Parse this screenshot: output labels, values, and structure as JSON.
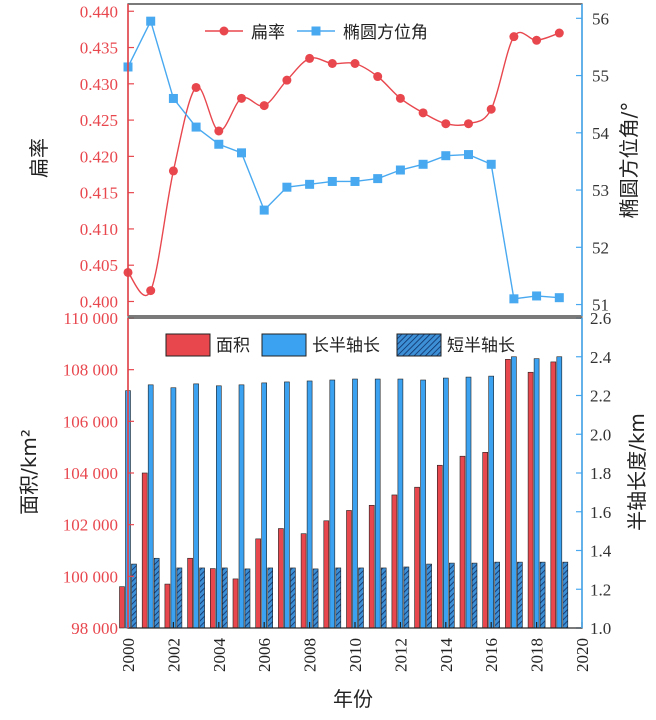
{
  "colors": {
    "red": "#e8474e",
    "blue": "#3ba2f2",
    "blue_line": "#49a9f0",
    "hatch_bg": "#3d8fd6",
    "hatch_line": "#0d2f66",
    "axis": "#222222"
  },
  "chart_data": [
    {
      "type": "line",
      "title": "",
      "xlabel": "",
      "xlim": [
        2000,
        2020
      ],
      "x": [
        2000,
        2001,
        2002,
        2003,
        2004,
        2005,
        2006,
        2007,
        2008,
        2009,
        2010,
        2011,
        2012,
        2013,
        2014,
        2015,
        2016,
        2017,
        2018,
        2019
      ],
      "left_axis": {
        "label": "扁率",
        "ylim": [
          0.398,
          0.441
        ],
        "ticks": [
          "0.400",
          "0.405",
          "0.410",
          "0.415",
          "0.420",
          "0.425",
          "0.430",
          "0.435",
          "0.440"
        ],
        "tick_values": [
          0.4,
          0.405,
          0.41,
          0.415,
          0.42,
          0.425,
          0.43,
          0.435,
          0.44
        ]
      },
      "right_axis": {
        "label": "椭圆方位角/°",
        "ylim": [
          50.8,
          56.25
        ],
        "ticks": [
          "51",
          "52",
          "53",
          "54",
          "55",
          "56"
        ],
        "tick_values": [
          51,
          52,
          53,
          54,
          55,
          56
        ]
      },
      "series": [
        {
          "name": "扁率",
          "axis": "left",
          "marker": "circle",
          "values": [
            0.404,
            0.4015,
            0.418,
            0.4295,
            0.4235,
            0.428,
            0.427,
            0.4305,
            0.4335,
            0.4328,
            0.4328,
            0.431,
            0.428,
            0.426,
            0.4245,
            0.4245,
            0.4265,
            0.4365,
            0.436,
            0.437
          ]
        },
        {
          "name": "椭圆方位角",
          "axis": "right",
          "marker": "square",
          "values": [
            55.15,
            55.95,
            54.6,
            54.1,
            53.8,
            53.65,
            52.65,
            53.05,
            53.1,
            53.15,
            53.15,
            53.2,
            53.35,
            53.45,
            53.6,
            53.62,
            53.45,
            51.1,
            51.15,
            51.12
          ]
        }
      ],
      "legend": {
        "position": "top-center",
        "entries": [
          "扁率",
          "椭圆方位角"
        ]
      }
    },
    {
      "type": "bar",
      "title": "",
      "xlabel": "年份",
      "xlim": [
        2000,
        2020
      ],
      "x_ticks": [
        "2000",
        "2002",
        "2004",
        "2006",
        "2008",
        "2010",
        "2012",
        "2014",
        "2016",
        "2018",
        "2020"
      ],
      "x": [
        2000,
        2001,
        2002,
        2003,
        2004,
        2005,
        2006,
        2007,
        2008,
        2009,
        2010,
        2011,
        2012,
        2013,
        2014,
        2015,
        2016,
        2017,
        2018,
        2019
      ],
      "left_axis": {
        "label": "面积/km²",
        "ylim": [
          98000,
          110000
        ],
        "ticks": [
          "98 000",
          "100 000",
          "102 000",
          "104 000",
          "106 000",
          "108 000",
          "110 000"
        ],
        "tick_values": [
          98000,
          100000,
          102000,
          104000,
          106000,
          108000,
          110000
        ]
      },
      "right_axis": {
        "label": "半轴长度/km",
        "ylim": [
          1.0,
          2.6
        ],
        "ticks": [
          "1.0",
          "1.2",
          "1.4",
          "1.6",
          "1.8",
          "2.0",
          "2.2",
          "2.4",
          "2.6"
        ],
        "tick_values": [
          1.0,
          1.2,
          1.4,
          1.6,
          1.8,
          2.0,
          2.2,
          2.4,
          2.6
        ]
      },
      "series": [
        {
          "name": "面积",
          "axis": "left",
          "style": "solid-red",
          "values": [
            99600,
            104000,
            99700,
            100700,
            100300,
            99900,
            101450,
            101850,
            101650,
            102150,
            102550,
            102750,
            103150,
            103450,
            104300,
            104650,
            104800,
            108400,
            107900,
            108300
          ]
        },
        {
          "name": "长半轴长",
          "axis": "right",
          "style": "solid-blue",
          "values": [
            2.225,
            2.255,
            2.24,
            2.26,
            2.25,
            2.255,
            2.265,
            2.27,
            2.275,
            2.28,
            2.285,
            2.285,
            2.285,
            2.28,
            2.29,
            2.295,
            2.3,
            2.4,
            2.39,
            2.4
          ]
        },
        {
          "name": "短半轴长",
          "axis": "right",
          "style": "hatched-blue",
          "values": [
            1.33,
            1.36,
            1.31,
            1.31,
            1.31,
            1.305,
            1.31,
            1.31,
            1.305,
            1.31,
            1.31,
            1.31,
            1.315,
            1.33,
            1.335,
            1.335,
            1.34,
            1.34,
            1.34,
            1.34
          ]
        }
      ],
      "legend": {
        "position": "top-center",
        "entries": [
          "面积",
          "长半轴长",
          "短半轴长"
        ]
      }
    }
  ]
}
